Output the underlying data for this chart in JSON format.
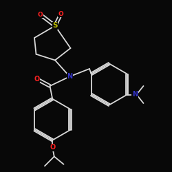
{
  "background": "#080808",
  "bond_color": "#d8d8d8",
  "heteroatom_colors": {
    "O": "#ff2222",
    "S": "#bbbb00",
    "N": "#3333cc"
  }
}
